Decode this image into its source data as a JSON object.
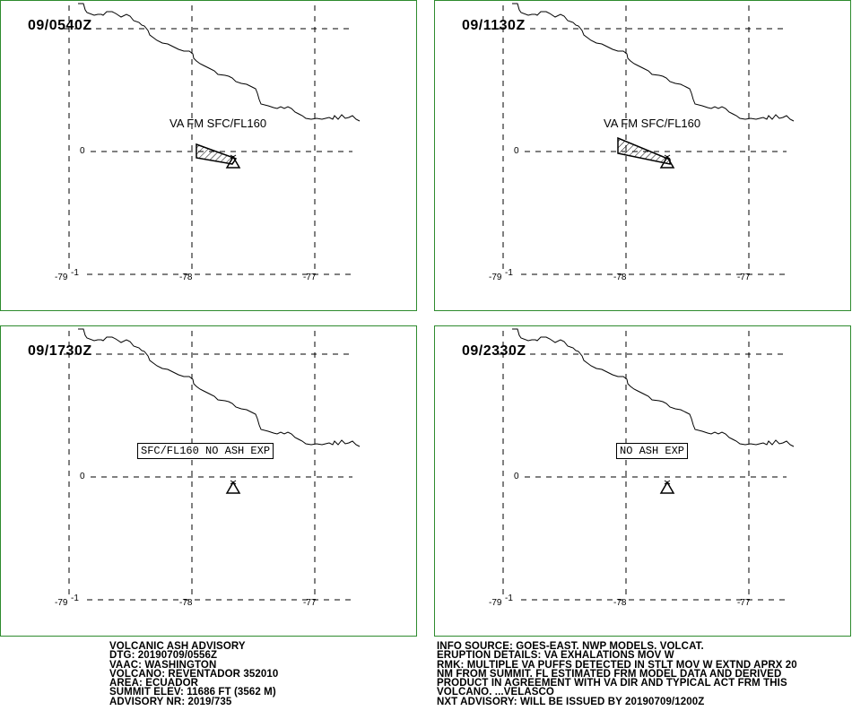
{
  "panels": [
    {
      "time": "09/0540Z",
      "label": "VA FM SFC/FL160",
      "label_style": "plain",
      "ash_polygon": "small"
    },
    {
      "time": "09/1130Z",
      "label": "VA FM SFC/FL160",
      "label_style": "plain",
      "ash_polygon": "large"
    },
    {
      "time": "09/1730Z",
      "label": "SFC/FL160 NO ASH EXP",
      "label_style": "boxed",
      "ash_polygon": "none"
    },
    {
      "time": "09/2330Z",
      "label": "NO ASH EXP",
      "label_style": "boxed",
      "ash_polygon": "none"
    }
  ],
  "axis_labels": {
    "lat_zero": "0",
    "lon_79": "-79",
    "lat_minus1": "-1",
    "lon_78": "-78",
    "lon_77": "-77"
  },
  "advisory": {
    "lines": [
      "VOLCANIC ASH ADVISORY",
      "DTG: 20190709/0556Z",
      "VAAC: WASHINGTON",
      "VOLCANO: REVENTADOR 352010",
      "AREA: ECUADOR",
      "SUMMIT ELEV: 11686 FT (3562 M)",
      "ADVISORY NR: 2019/735"
    ]
  },
  "info": {
    "lines": [
      "INFO SOURCE: GOES-EAST. NWP MODELS. VOLCAT.",
      "ERUPTION DETAILS: VA EXHALATIONS MOV W",
      "RMK: MULTIPLE VA PUFFS DETECTED IN STLT MOV W EXTND APRX 20",
      "NM FROM SUMMIT. FL ESTIMATED FRM MODEL DATA AND DERIVED",
      "PRODUCT IN AGREEMENT WITH VA DIR AND TYPICAL ACT FRM THIS",
      "VOLCANO. ...VELASCO",
      "NXT ADVISORY: WILL BE ISSUED BY 20190709/1200Z"
    ]
  },
  "colors": {
    "border": "#2e8b2e",
    "lines": "#000000"
  },
  "icons": {
    "volcano": "volcano-icon"
  }
}
